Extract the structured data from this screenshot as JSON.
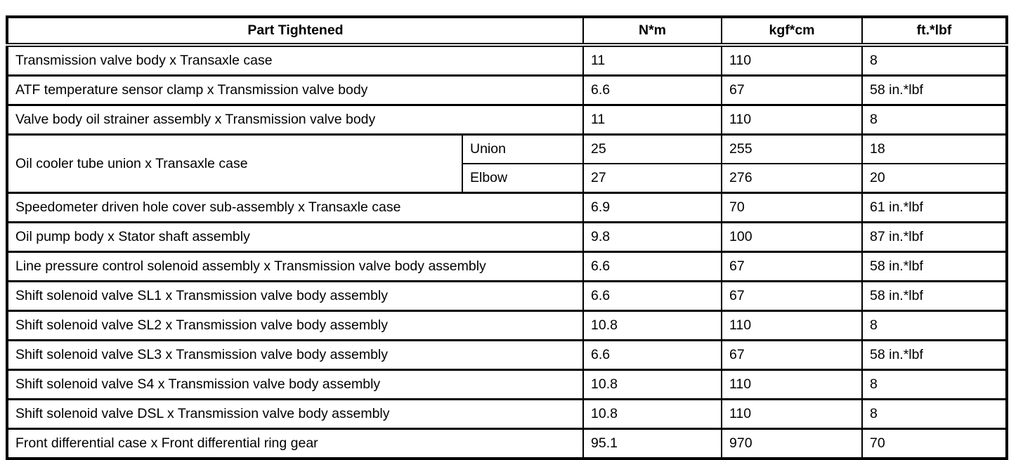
{
  "table": {
    "headers": {
      "part": "Part Tightened",
      "nm": "N*m",
      "kgfcm": "kgf*cm",
      "ftlbf": "ft.*lbf"
    },
    "rows": [
      {
        "part": "Transmission valve body x Transaxle case",
        "nm": "11",
        "kgfcm": "110",
        "ftlbf": "8"
      },
      {
        "part": "ATF temperature sensor clamp x Transmission valve body",
        "nm": "6.6",
        "kgfcm": "67",
        "ftlbf": "58 in.*lbf"
      },
      {
        "part": "Valve body oil strainer assembly x Transmission valve body",
        "nm": "11",
        "kgfcm": "110",
        "ftlbf": "8"
      },
      {
        "part": "Oil cooler tube union x Transaxle case",
        "variants": [
          {
            "label": "Union",
            "nm": "25",
            "kgfcm": "255",
            "ftlbf": "18"
          },
          {
            "label": "Elbow",
            "nm": "27",
            "kgfcm": "276",
            "ftlbf": "20"
          }
        ]
      },
      {
        "part": "Speedometer driven hole cover sub-assembly x Transaxle case",
        "nm": "6.9",
        "kgfcm": "70",
        "ftlbf": "61 in.*lbf"
      },
      {
        "part": "Oil pump body x Stator shaft assembly",
        "nm": "9.8",
        "kgfcm": "100",
        "ftlbf": "87 in.*lbf"
      },
      {
        "part": "Line pressure control solenoid assembly x Transmission valve body assembly",
        "nm": "6.6",
        "kgfcm": "67",
        "ftlbf": "58 in.*lbf"
      },
      {
        "part": "Shift solenoid valve SL1 x Transmission valve body assembly",
        "nm": "6.6",
        "kgfcm": "67",
        "ftlbf": "58 in.*lbf"
      },
      {
        "part": "Shift solenoid valve SL2 x Transmission valve body assembly",
        "nm": "10.8",
        "kgfcm": "110",
        "ftlbf": "8"
      },
      {
        "part": "Shift solenoid valve SL3 x Transmission valve body assembly",
        "nm": "6.6",
        "kgfcm": "67",
        "ftlbf": "58 in.*lbf"
      },
      {
        "part": "Shift solenoid valve S4 x Transmission valve body assembly",
        "nm": "10.8",
        "kgfcm": "110",
        "ftlbf": "8"
      },
      {
        "part": "Shift solenoid valve DSL x Transmission valve body assembly",
        "nm": "10.8",
        "kgfcm": "110",
        "ftlbf": "8"
      },
      {
        "part": "Front differential case x Front differential ring gear",
        "nm": "95.1",
        "kgfcm": "970",
        "ftlbf": "70"
      }
    ],
    "colors": {
      "border": "#000000",
      "background": "#ffffff",
      "text": "#000000"
    }
  }
}
